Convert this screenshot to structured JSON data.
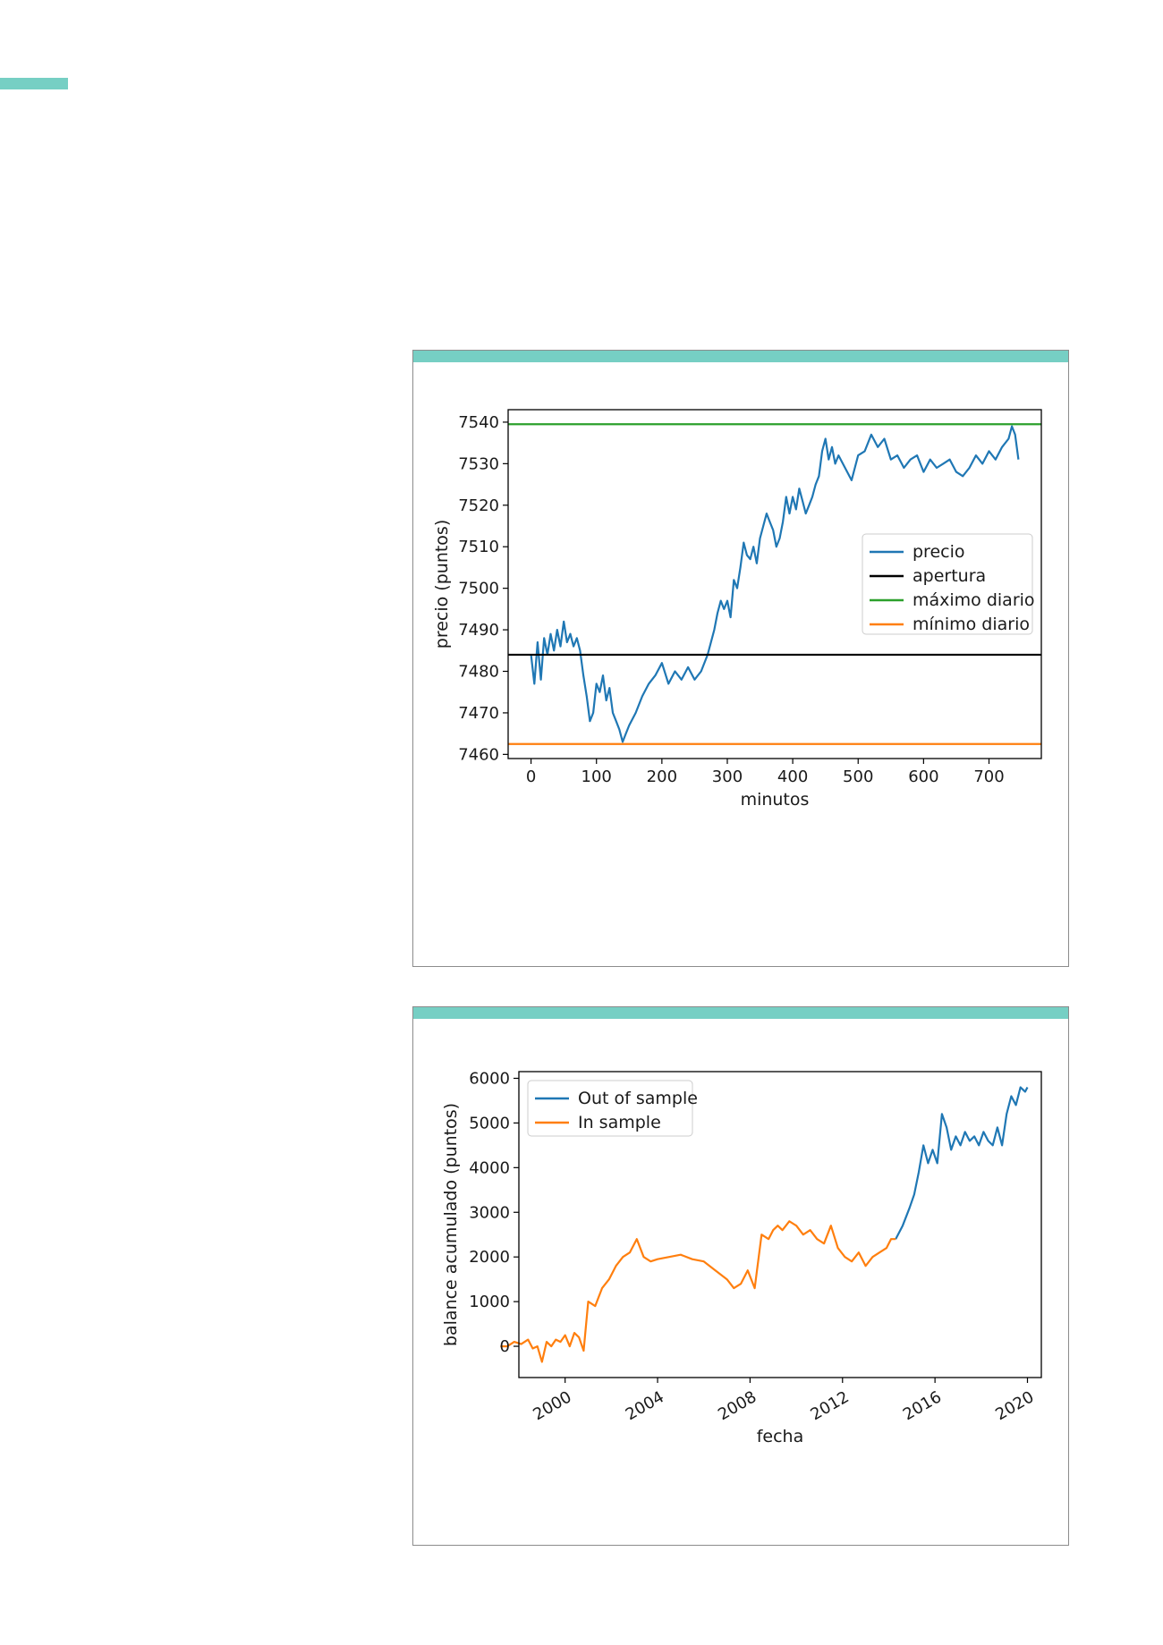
{
  "colors": {
    "accent": "#76cfc4",
    "series_blue": "#1f77b4",
    "series_orange": "#ff7f0e",
    "series_green": "#2ca02c",
    "series_black": "#000000"
  },
  "chart_data": [
    {
      "type": "line",
      "xlabel": "minutos",
      "ylabel": "precio (puntos)",
      "xlim": [
        -35,
        780
      ],
      "ylim": [
        7459,
        7543
      ],
      "xticks": [
        0,
        100,
        200,
        300,
        400,
        500,
        600,
        700
      ],
      "yticks": [
        7460,
        7470,
        7480,
        7490,
        7500,
        7510,
        7520,
        7530,
        7540
      ],
      "legend_placement": "center-right",
      "series": [
        {
          "name": "precio",
          "color": "#1f77b4",
          "x": [
            0,
            5,
            10,
            15,
            20,
            25,
            30,
            35,
            40,
            45,
            50,
            55,
            60,
            65,
            70,
            75,
            80,
            85,
            90,
            95,
            100,
            105,
            110,
            115,
            120,
            125,
            130,
            135,
            140,
            145,
            150,
            160,
            170,
            180,
            190,
            200,
            210,
            220,
            230,
            240,
            250,
            260,
            270,
            275,
            280,
            285,
            290,
            295,
            300,
            305,
            310,
            315,
            320,
            325,
            330,
            335,
            340,
            345,
            350,
            355,
            360,
            365,
            370,
            375,
            380,
            385,
            390,
            395,
            400,
            405,
            410,
            415,
            420,
            425,
            430,
            435,
            440,
            445,
            450,
            455,
            460,
            465,
            470,
            480,
            490,
            500,
            510,
            520,
            530,
            540,
            550,
            560,
            570,
            580,
            590,
            600,
            610,
            620,
            630,
            640,
            650,
            660,
            670,
            680,
            690,
            700,
            710,
            720,
            730,
            735,
            740,
            745
          ],
          "values": [
            7484,
            7477,
            7487,
            7478,
            7488,
            7484,
            7489,
            7485,
            7490,
            7486,
            7492,
            7487,
            7489,
            7486,
            7488,
            7485,
            7479,
            7474,
            7468,
            7470,
            7477,
            7475,
            7479,
            7473,
            7476,
            7470,
            7468,
            7466,
            7463,
            7465,
            7467,
            7470,
            7474,
            7477,
            7479,
            7482,
            7477,
            7480,
            7478,
            7481,
            7478,
            7480,
            7484,
            7487,
            7490,
            7494,
            7497,
            7495,
            7497,
            7493,
            7502,
            7500,
            7505,
            7511,
            7508,
            7507,
            7510,
            7506,
            7512,
            7515,
            7518,
            7516,
            7514,
            7510,
            7512,
            7516,
            7522,
            7518,
            7522,
            7519,
            7524,
            7521,
            7518,
            7520,
            7522,
            7525,
            7527,
            7533,
            7536,
            7531,
            7534,
            7530,
            7532,
            7529,
            7526,
            7532,
            7533,
            7537,
            7534,
            7536,
            7531,
            7532,
            7529,
            7531,
            7532,
            7528,
            7531,
            7529,
            7530,
            7531,
            7528,
            7527,
            7529,
            7532,
            7530,
            7533,
            7531,
            7534,
            7536,
            7539,
            7537,
            7531
          ]
        },
        {
          "name": "apertura",
          "color": "#000000",
          "y": 7484
        },
        {
          "name": "máximo diario",
          "color": "#2ca02c",
          "y": 7539.5
        },
        {
          "name": "mínimo diario",
          "color": "#ff7f0e",
          "y": 7462.5
        }
      ]
    },
    {
      "type": "line",
      "xlabel": "fecha",
      "ylabel": "balance acumulado (puntos)",
      "xlim": [
        1998.0,
        2020.6
      ],
      "ylim": [
        -700,
        6150
      ],
      "xticks": [
        2000,
        2004,
        2008,
        2012,
        2016,
        2020
      ],
      "yticks": [
        0,
        1000,
        2000,
        3000,
        4000,
        5000,
        6000
      ],
      "legend_placement": "upper-left",
      "series": [
        {
          "name": "Out of sample",
          "color": "#1f77b4",
          "x": [
            2014.3,
            2014.6,
            2014.9,
            2015.1,
            2015.3,
            2015.5,
            2015.7,
            2015.9,
            2016.1,
            2016.3,
            2016.5,
            2016.7,
            2016.9,
            2017.1,
            2017.3,
            2017.5,
            2017.7,
            2017.9,
            2018.1,
            2018.3,
            2018.5,
            2018.7,
            2018.9,
            2019.1,
            2019.3,
            2019.5,
            2019.7,
            2019.9,
            2020.0
          ],
          "values": [
            2400,
            2700,
            3100,
            3400,
            3900,
            4500,
            4100,
            4400,
            4100,
            5200,
            4900,
            4400,
            4700,
            4500,
            4800,
            4600,
            4700,
            4500,
            4800,
            4600,
            4500,
            4900,
            4500,
            5200,
            5600,
            5400,
            5800,
            5700,
            5800
          ]
        },
        {
          "name": "In sample",
          "color": "#ff7f0e",
          "x": [
            1997.2,
            1997.5,
            1997.8,
            1998.1,
            1998.4,
            1998.6,
            1998.8,
            1999.0,
            1999.2,
            1999.4,
            1999.6,
            1999.8,
            2000.0,
            2000.2,
            2000.4,
            2000.6,
            2000.8,
            2001.0,
            2001.3,
            2001.6,
            2001.9,
            2002.2,
            2002.5,
            2002.8,
            2003.1,
            2003.4,
            2003.7,
            2004.0,
            2004.5,
            2005.0,
            2005.5,
            2006.0,
            2006.5,
            2007.0,
            2007.3,
            2007.6,
            2007.9,
            2008.2,
            2008.5,
            2008.8,
            2009.0,
            2009.2,
            2009.4,
            2009.7,
            2010.0,
            2010.3,
            2010.6,
            2010.9,
            2011.2,
            2011.5,
            2011.8,
            2012.1,
            2012.4,
            2012.7,
            2013.0,
            2013.3,
            2013.6,
            2013.9,
            2014.1,
            2014.3
          ],
          "values": [
            0,
            0,
            100,
            50,
            150,
            -50,
            0,
            -350,
            100,
            0,
            150,
            100,
            250,
            0,
            300,
            200,
            -100,
            1000,
            900,
            1300,
            1500,
            1800,
            2000,
            2100,
            2400,
            2000,
            1900,
            1950,
            2000,
            2050,
            1950,
            1900,
            1700,
            1500,
            1300,
            1400,
            1700,
            1300,
            2500,
            2400,
            2600,
            2700,
            2600,
            2800,
            2700,
            2500,
            2600,
            2400,
            2300,
            2700,
            2200,
            2000,
            1900,
            2100,
            1800,
            2000,
            2100,
            2200,
            2400,
            2400
          ]
        }
      ]
    }
  ]
}
